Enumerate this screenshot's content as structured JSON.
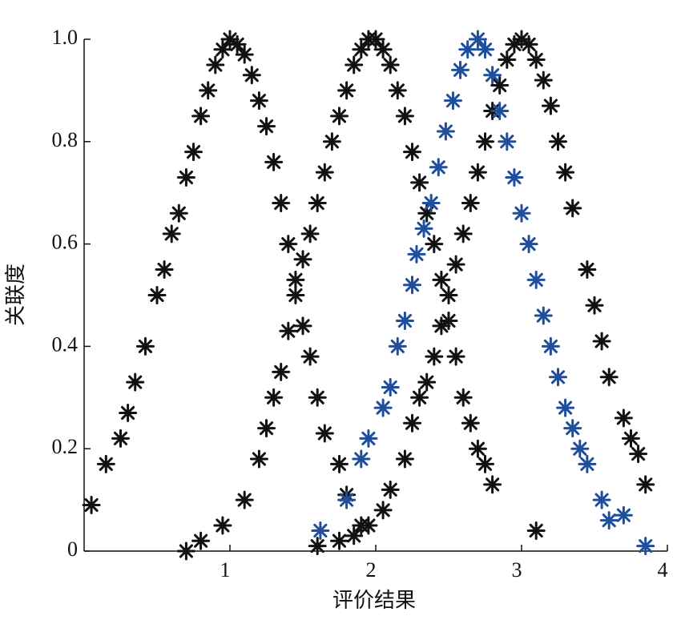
{
  "chart_data": {
    "type": "scatter",
    "xlabel": "评价结果",
    "ylabel": "关联度",
    "xlim": [
      0,
      4
    ],
    "ylim": [
      0,
      1
    ],
    "xticks": [
      1,
      2,
      3,
      4
    ],
    "yticks": [
      0,
      0.2,
      0.4,
      0.6,
      0.8,
      {
        "value": 1,
        "label": "1.0"
      }
    ],
    "marker": "asterisk",
    "series": [
      {
        "color": "#111111",
        "x": [
          0.05,
          0.15,
          0.25,
          0.3,
          0.35,
          0.42,
          0.5,
          0.55,
          0.6,
          0.65,
          0.7,
          0.75,
          0.8,
          0.85,
          0.9,
          0.95,
          1.0,
          1.05,
          1.1,
          1.15,
          1.2,
          1.25,
          1.3,
          1.35,
          1.4,
          1.45,
          1.5,
          1.55,
          1.6,
          1.65,
          1.75,
          1.8,
          1.9
        ],
        "values": [
          0.09,
          0.17,
          0.22,
          0.27,
          0.33,
          0.4,
          0.5,
          0.55,
          0.62,
          0.66,
          0.73,
          0.78,
          0.85,
          0.9,
          0.95,
          0.98,
          1.0,
          0.99,
          0.97,
          0.93,
          0.88,
          0.83,
          0.76,
          0.68,
          0.6,
          0.53,
          0.44,
          0.38,
          0.3,
          0.23,
          0.17,
          0.11,
          0.05
        ]
      },
      {
        "color": "#111111",
        "x": [
          0.7,
          0.8,
          0.95,
          1.1,
          1.2,
          1.25,
          1.3,
          1.35,
          1.4,
          1.45,
          1.5,
          1.55,
          1.6,
          1.65,
          1.7,
          1.75,
          1.8,
          1.85,
          1.9,
          1.95,
          2.0,
          2.05,
          2.1,
          2.15,
          2.2,
          2.25,
          2.3,
          2.35,
          2.4,
          2.45,
          2.5,
          2.55,
          2.6,
          2.65,
          2.7,
          2.75,
          2.8
        ],
        "values": [
          0.0,
          0.02,
          0.05,
          0.1,
          0.18,
          0.24,
          0.3,
          0.35,
          0.43,
          0.5,
          0.57,
          0.62,
          0.68,
          0.74,
          0.8,
          0.85,
          0.9,
          0.95,
          0.98,
          1.0,
          1.0,
          0.98,
          0.95,
          0.9,
          0.85,
          0.78,
          0.72,
          0.66,
          0.6,
          0.53,
          0.45,
          0.38,
          0.3,
          0.25,
          0.2,
          0.17,
          0.13
        ]
      },
      {
        "color": "#111111",
        "x": [
          1.6,
          1.75,
          1.85,
          1.95,
          2.05,
          2.1,
          2.2,
          2.25,
          2.3,
          2.35,
          2.4,
          2.45,
          2.5,
          2.55,
          2.6,
          2.65,
          2.7,
          2.75,
          2.8,
          2.85,
          2.9,
          2.95,
          3.0,
          3.05,
          3.1,
          3.1,
          3.15,
          3.2,
          3.25,
          3.3,
          3.35,
          3.45,
          3.5,
          3.55,
          3.6,
          3.7,
          3.75,
          3.8,
          3.85
        ],
        "values": [
          0.01,
          0.02,
          0.03,
          0.05,
          0.08,
          0.12,
          0.18,
          0.25,
          0.3,
          0.33,
          0.38,
          0.44,
          0.5,
          0.56,
          0.62,
          0.68,
          0.74,
          0.8,
          0.86,
          0.91,
          0.96,
          0.99,
          1.0,
          0.99,
          0.96,
          0.04,
          0.92,
          0.87,
          0.8,
          0.74,
          0.67,
          0.55,
          0.48,
          0.41,
          0.34,
          0.26,
          0.22,
          0.19,
          0.13
        ]
      },
      {
        "color": "#1f4e9c",
        "x": [
          1.62,
          1.8,
          1.9,
          1.95,
          2.05,
          2.1,
          2.15,
          2.2,
          2.25,
          2.28,
          2.33,
          2.38,
          2.43,
          2.48,
          2.53,
          2.58,
          2.63,
          2.7,
          2.75,
          2.8,
          2.85,
          2.9,
          2.95,
          3.0,
          3.05,
          3.1,
          3.15,
          3.2,
          3.25,
          3.3,
          3.35,
          3.4,
          3.45,
          3.55,
          3.6,
          3.7,
          3.85
        ],
        "values": [
          0.04,
          0.1,
          0.18,
          0.22,
          0.28,
          0.32,
          0.4,
          0.45,
          0.52,
          0.58,
          0.63,
          0.68,
          0.75,
          0.82,
          0.88,
          0.94,
          0.98,
          1.0,
          0.98,
          0.93,
          0.86,
          0.8,
          0.73,
          0.66,
          0.6,
          0.53,
          0.46,
          0.4,
          0.34,
          0.28,
          0.24,
          0.2,
          0.17,
          0.1,
          0.06,
          0.07,
          0.01
        ]
      }
    ]
  }
}
